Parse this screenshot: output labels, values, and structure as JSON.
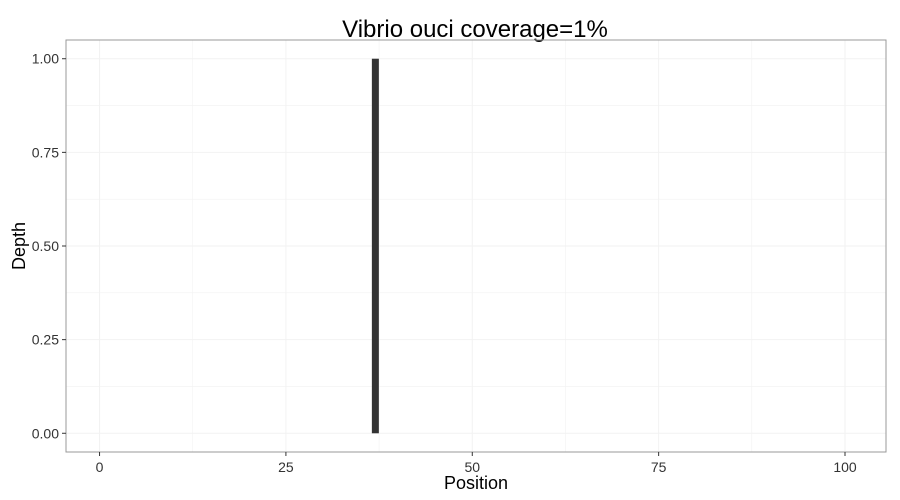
{
  "chart_data": {
    "type": "bar",
    "title": "Vibrio ouci coverage=1%",
    "xlabel": "Position",
    "ylabel": "Depth",
    "xlim": [
      -4.5,
      105.5
    ],
    "ylim": [
      -0.05,
      1.05
    ],
    "x_ticks": [
      {
        "value": 0,
        "label": "0"
      },
      {
        "value": 25,
        "label": "25"
      },
      {
        "value": 50,
        "label": "50"
      },
      {
        "value": 75,
        "label": "75"
      },
      {
        "value": 100,
        "label": "100"
      }
    ],
    "y_ticks": [
      {
        "value": 0,
        "label": "0.00"
      },
      {
        "value": 0.25,
        "label": "0.25"
      },
      {
        "value": 0.5,
        "label": "0.50"
      },
      {
        "value": 0.75,
        "label": "0.75"
      },
      {
        "value": 1,
        "label": "1.00"
      }
    ],
    "bars": [
      {
        "x": 37,
        "y": 1.0
      }
    ],
    "grid": true,
    "legend": "none",
    "colors": {
      "bar": "#333333",
      "grid": "#f2f2f2",
      "panel_border": "#999999",
      "tick": "#333333",
      "background": "#ffffff"
    }
  }
}
